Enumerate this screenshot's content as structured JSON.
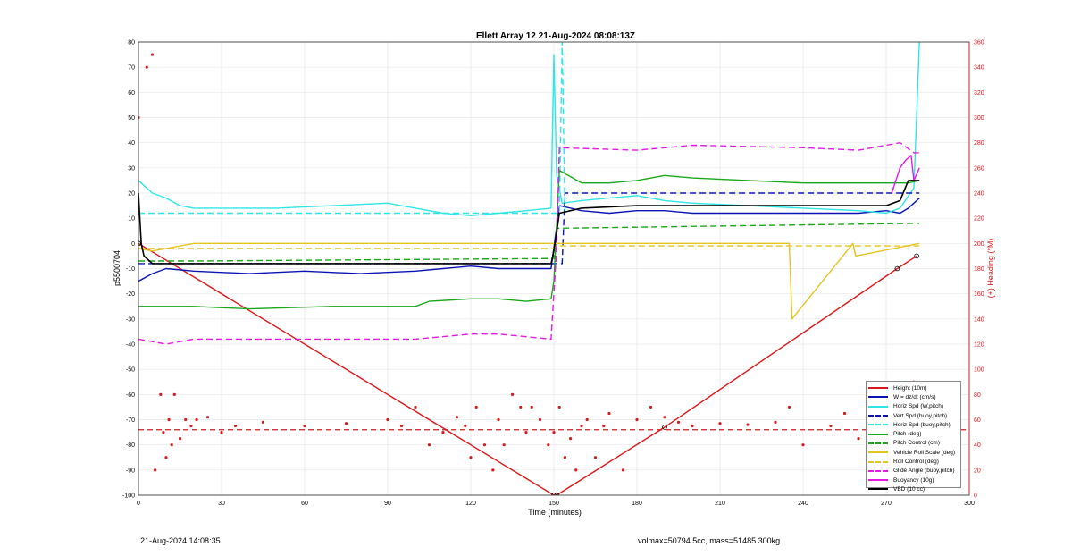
{
  "chart_data": {
    "type": "line",
    "title": "Ellett Array 12 21-Aug-2024 08:08:13Z",
    "xlabel": "Time (minutes)",
    "ylabel": "p5500704",
    "y2label": "(+) Heading (°M)",
    "xlim": [
      0,
      300
    ],
    "ylim": [
      -100,
      80
    ],
    "y2lim": [
      0,
      360
    ],
    "xticks": [
      "0",
      "30",
      "60",
      "90",
      "120",
      "150",
      "180",
      "210",
      "240",
      "270",
      "300"
    ],
    "yticks": [
      "-100",
      "-90",
      "-80",
      "-70",
      "-60",
      "-50",
      "-40",
      "-30",
      "-20",
      "-10",
      "0",
      "10",
      "20",
      "30",
      "40",
      "50",
      "60",
      "70",
      "80"
    ],
    "y2ticks": [
      "0",
      "20",
      "40",
      "60",
      "80",
      "100",
      "120",
      "140",
      "160",
      "180",
      "200",
      "220",
      "240",
      "260",
      "280",
      "300",
      "320",
      "340",
      "360"
    ],
    "grid": true,
    "legend_position": "bottom-right",
    "colors": {
      "height": "#d7191c",
      "w": "#0a14b4",
      "horiz_w": "#2ee6e6",
      "vert_buoy": "#0a14b4",
      "horiz_buoy": "#2ee6e6",
      "pitch": "#19a819",
      "pitch_ctrl": "#19a819",
      "roll": "#e6c31e",
      "roll_ctrl": "#e6c31e",
      "glide": "#e619e6",
      "buoy": "#e619e6",
      "vbd": "#000000"
    },
    "series": [
      {
        "name": "Height (10m)",
        "key": "height",
        "style": "solid",
        "x": [
          0,
          150,
          151,
          190,
          274,
          281
        ],
        "y": [
          0,
          -100,
          -100,
          -73,
          -10,
          -5
        ]
      },
      {
        "name": "W = dz/dt (cm/s)",
        "key": "w",
        "style": "solid",
        "x": [
          0,
          5,
          10,
          20,
          40,
          60,
          80,
          100,
          110,
          120,
          130,
          140,
          149,
          152,
          160,
          170,
          180,
          190,
          200,
          220,
          240,
          260,
          270,
          275,
          278,
          280,
          282
        ],
        "y": [
          -15,
          -12,
          -10,
          -11,
          -12,
          -11,
          -12,
          -11,
          -10,
          -9,
          -10,
          -10,
          -10,
          15,
          13,
          12,
          13,
          13,
          12,
          12,
          12,
          12,
          13,
          12,
          14,
          16,
          18
        ]
      },
      {
        "name": "Horiz Spd (W,pitch)",
        "key": "horiz_w",
        "style": "solid",
        "x": [
          0,
          5,
          10,
          15,
          20,
          30,
          50,
          70,
          90,
          100,
          110,
          120,
          130,
          140,
          149,
          150,
          151,
          153,
          160,
          170,
          180,
          190,
          200,
          220,
          240,
          260,
          270,
          275,
          280,
          282
        ],
        "y": [
          25,
          20,
          18,
          15,
          14,
          14,
          14,
          15,
          16,
          14,
          12,
          11,
          12,
          13,
          14,
          75,
          27,
          16,
          17,
          18,
          19,
          17,
          16,
          15,
          14,
          13,
          12,
          14,
          22,
          80
        ]
      },
      {
        "name": "Vert Spd (buoy,pitch)",
        "key": "vert_buoy",
        "style": "dashed",
        "x": [
          0,
          148,
          153,
          154,
          282
        ],
        "y": [
          -8,
          -8,
          -8,
          20,
          20
        ]
      },
      {
        "name": "Horiz Spd (buoy,pitch)",
        "key": "horiz_buoy",
        "style": "dashed",
        "x": [
          0,
          152,
          153,
          154
        ],
        "y": [
          12,
          12,
          80,
          12
        ]
      },
      {
        "name": "Pitch (deg)",
        "key": "pitch",
        "style": "solid",
        "x": [
          0,
          10,
          20,
          40,
          70,
          100,
          105,
          120,
          130,
          140,
          149,
          150,
          152,
          160,
          170,
          180,
          190,
          200,
          220,
          240,
          260,
          270,
          278,
          282
        ],
        "y": [
          -25,
          -25,
          -25,
          -26,
          -25,
          -25,
          -23,
          -22,
          -22,
          -23,
          -22,
          -15,
          29,
          24,
          24,
          25,
          27,
          26,
          25,
          24,
          24,
          24,
          24,
          25
        ]
      },
      {
        "name": "Pitch Control (cm)",
        "key": "pitch_ctrl",
        "style": "dashed",
        "x": [
          0,
          10,
          20,
          150,
          151,
          282
        ],
        "y": [
          -7,
          -7,
          -7,
          -6,
          6,
          8
        ]
      },
      {
        "name": "Vehicle Roll Scale (deg)",
        "key": "roll",
        "style": "solid",
        "x": [
          0,
          5,
          20,
          30,
          33,
          34,
          60,
          90,
          103,
          104,
          112,
          113,
          118,
          119,
          120,
          150,
          151,
          200,
          235,
          236,
          258,
          259,
          282
        ],
        "y": [
          -2,
          -3,
          0,
          0,
          0,
          0,
          0,
          0,
          0,
          0,
          0,
          0,
          0,
          0,
          0,
          0,
          0,
          0,
          0,
          -30,
          0,
          -5,
          0
        ]
      },
      {
        "name": "Roll Control (deg)",
        "key": "roll_ctrl",
        "style": "dashed",
        "x": [
          0,
          20,
          150,
          151,
          282
        ],
        "y": [
          -2,
          -2,
          -2,
          -1,
          -1
        ]
      },
      {
        "name": "Glide Angle (buoy,pitch)",
        "key": "glide",
        "style": "dashed",
        "x": [
          0,
          10,
          20,
          40,
          80,
          100,
          110,
          120,
          130,
          149,
          151,
          152,
          180,
          200,
          240,
          260,
          275,
          280,
          282
        ],
        "y": [
          -38,
          -40,
          -38,
          -38,
          -38,
          -38,
          -37,
          -36,
          -36,
          -38,
          -2,
          38,
          37,
          39,
          38,
          37,
          40,
          36,
          36
        ]
      },
      {
        "name": "Buoyancy (10g)",
        "key": "buoy",
        "style": "solid",
        "x": [
          272,
          275,
          277,
          279,
          280,
          282
        ],
        "y": [
          20,
          30,
          33,
          35,
          25,
          30
        ]
      },
      {
        "name": "VBD (10 cc)",
        "key": "vbd",
        "style": "solid",
        "x": [
          0,
          1,
          2,
          5,
          15,
          40,
          80,
          110,
          149,
          150,
          152,
          156,
          160,
          180,
          200,
          240,
          260,
          270,
          275,
          278,
          282
        ],
        "y": [
          20,
          0,
          -5,
          -8,
          -8,
          -8,
          -8,
          -8,
          -8,
          -3,
          12,
          13,
          14,
          15,
          15,
          15,
          15,
          15,
          17,
          25,
          25
        ]
      }
    ],
    "heading": {
      "name": "Heading (°M)",
      "x": [
        0,
        3,
        5,
        6,
        8,
        9,
        10,
        11,
        12,
        13,
        15,
        17,
        19,
        21,
        25,
        30,
        35,
        45,
        60,
        75,
        90,
        95,
        100,
        105,
        110,
        115,
        118,
        120,
        122,
        125,
        128,
        130,
        132,
        135,
        138,
        140,
        142,
        145,
        148,
        150,
        152,
        154,
        156,
        158,
        160,
        162,
        165,
        168,
        170,
        175,
        180,
        185,
        190,
        195,
        200,
        210,
        220,
        230,
        235,
        240,
        250,
        255,
        260,
        265,
        270,
        273,
        275,
        278,
        280,
        282
      ],
      "y": [
        300,
        340,
        350,
        20,
        80,
        50,
        30,
        60,
        40,
        80,
        45,
        60,
        55,
        60,
        62,
        50,
        55,
        58,
        55,
        57,
        60,
        55,
        70,
        40,
        50,
        62,
        55,
        30,
        70,
        40,
        20,
        60,
        40,
        80,
        70,
        50,
        70,
        60,
        40,
        50,
        70,
        30,
        45,
        20,
        55,
        60,
        30,
        55,
        65,
        20,
        60,
        70,
        62,
        58,
        55,
        57,
        56,
        58,
        70,
        40,
        55,
        65,
        45,
        60,
        45,
        35,
        60,
        45,
        90,
        48
      ],
      "mean": 52
    }
  },
  "footer": {
    "left": "21-Aug-2024 14:08:35",
    "right": "volmax=50794.5cc, mass=51485.300kg"
  }
}
